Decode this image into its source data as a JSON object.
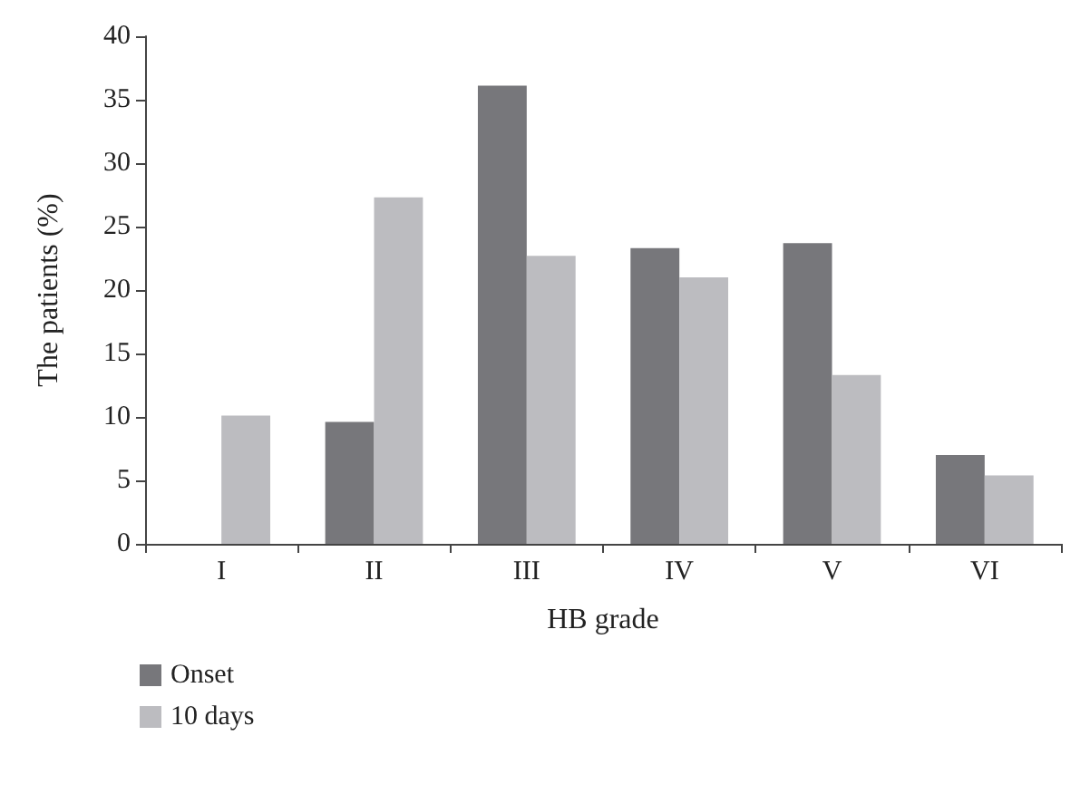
{
  "chart_data": {
    "type": "bar",
    "xlabel": "HB grade",
    "ylabel": "The patients (%)",
    "categories": [
      "I",
      "II",
      "III",
      "IV",
      "V",
      "VI"
    ],
    "series": [
      {
        "name": "Onset",
        "color": "#77777b",
        "values": [
          0,
          9.6,
          36.1,
          23.3,
          23.7,
          7
        ]
      },
      {
        "name": "10 days",
        "color": "#bcbcc0",
        "values": [
          10.1,
          27.3,
          22.7,
          21,
          13.3,
          5.4
        ]
      }
    ],
    "ylim": [
      0,
      40
    ],
    "yticks": [
      0,
      5,
      10,
      15,
      20,
      25,
      30,
      35,
      40
    ],
    "grid": false,
    "legend": "bottom left"
  }
}
